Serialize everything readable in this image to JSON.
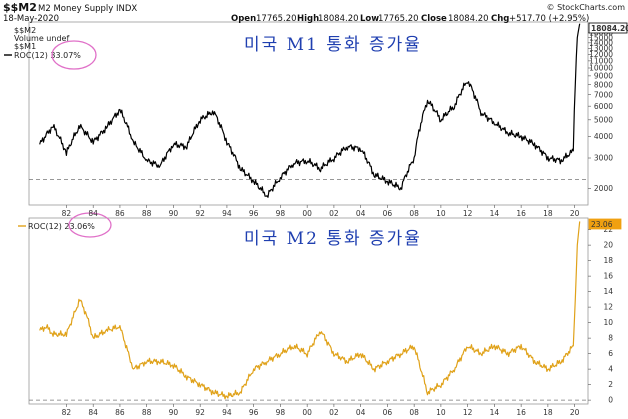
{
  "header": {
    "symbol": "$$M2",
    "name": "M2 Money Supply",
    "exchange": "INDX",
    "date": "18-May-2020",
    "open_label": "Open",
    "open": "17765.20",
    "high_label": "High",
    "high": "18084.20",
    "low_label": "Low",
    "low": "17765.20",
    "close_label": "Close",
    "close": "18084.20",
    "chg_label": "Chg",
    "chg": "+517.70 (+2.95%)",
    "source": "© StockCharts.com"
  },
  "legend_top": {
    "items": [
      "$$M2",
      "Volume undef",
      "$$M1",
      "ROC(12) 33.07%"
    ]
  },
  "legend_bottom": {
    "item": "ROC(12) 23.06%"
  },
  "annotations": {
    "top": "미국 M1 통화 증가율",
    "bottom": "미국 M2 통화 증가율"
  },
  "colors": {
    "m1_line": "#000000",
    "m2_roc_line": "#e0a21a",
    "circle": "#e070c8",
    "annotation": "#1f3fb0",
    "last_value_box": "#f0a010"
  },
  "chart_data": [
    {
      "type": "line",
      "title": "",
      "series": [
        {
          "name": "$$M1",
          "values_note": "log scale"
        }
      ],
      "x": [
        1980,
        1981,
        1982,
        1983,
        1984,
        1985,
        1986,
        1987,
        1988,
        1989,
        1990,
        1991,
        1992,
        1993,
        1994,
        1995,
        1996,
        1997,
        1998,
        1999,
        2000,
        2001,
        2002,
        2003,
        2004,
        2005,
        2006,
        2007,
        2008,
        2009,
        2010,
        2011,
        2012,
        2013,
        2014,
        2015,
        2016,
        2017,
        2018,
        2019,
        2019.9,
        2020.05,
        2020.2,
        2020.38
      ],
      "y": [
        3600,
        4600,
        3200,
        4600,
        3700,
        4500,
        5700,
        3700,
        2900,
        2700,
        3600,
        3500,
        5000,
        5600,
        3700,
        2600,
        2200,
        1800,
        2300,
        2800,
        2900,
        2600,
        3000,
        3500,
        3400,
        2400,
        2200,
        2000,
        3000,
        6500,
        5000,
        6000,
        8500,
        5500,
        4800,
        4200,
        4000,
        3600,
        3000,
        2900,
        3300,
        8000,
        15000,
        18084.2
      ],
      "last_value": "18084.20",
      "yticks": [
        "2000",
        "3000",
        "4000",
        "5000",
        "6000",
        "7000",
        "8000",
        "9000",
        "10000",
        "11000",
        "12000",
        "13000",
        "14000",
        "15000",
        "16000"
      ],
      "yscale": "log",
      "ylim": [
        1600,
        18500
      ],
      "reference_line": 2250,
      "xtick_labels": [
        "82",
        "84",
        "86",
        "88",
        "90",
        "92",
        "94",
        "96",
        "98",
        "00",
        "02",
        "04",
        "06",
        "08",
        "10",
        "12",
        "14",
        "16",
        "18",
        "20"
      ],
      "grid": false
    },
    {
      "type": "line",
      "title": "",
      "series": [
        {
          "name": "ROC(12)"
        }
      ],
      "x": [
        1980,
        1980.5,
        1981,
        1982,
        1983,
        1983.5,
        1984,
        1985,
        1986,
        1987,
        1988,
        1989,
        1990,
        1991,
        1992,
        1993,
        1994,
        1995,
        1996,
        1997,
        1998,
        1999,
        2000,
        2001,
        2002,
        2003,
        2004,
        2005,
        2006,
        2007,
        2008,
        2009,
        2010,
        2011,
        2012,
        2013,
        2014,
        2015,
        2016,
        2017,
        2018,
        2019,
        2019.9,
        2020.05,
        2020.2,
        2020.38
      ],
      "y": [
        9,
        9.5,
        8.5,
        8.5,
        13,
        11,
        8,
        9,
        9.5,
        4,
        5,
        5,
        4.5,
        3,
        2,
        1,
        0.5,
        1,
        4,
        5,
        6,
        7,
        6,
        9,
        6,
        5,
        6,
        4,
        5,
        6,
        7,
        1,
        2,
        4,
        7,
        6,
        7,
        6,
        7,
        5,
        4,
        5,
        7,
        13,
        20,
        23.06
      ],
      "last_value": "23.06",
      "yticks": [
        "0",
        "2",
        "4",
        "6",
        "8",
        "10",
        "12",
        "14",
        "16",
        "18",
        "20",
        "22"
      ],
      "ylim": [
        -0.5,
        23.5
      ],
      "reference_line": 0,
      "xtick_labels": [
        "82",
        "84",
        "86",
        "88",
        "90",
        "92",
        "94",
        "96",
        "98",
        "00",
        "02",
        "04",
        "06",
        "08",
        "10",
        "12",
        "14",
        "16",
        "18",
        "20"
      ],
      "grid": false
    }
  ]
}
